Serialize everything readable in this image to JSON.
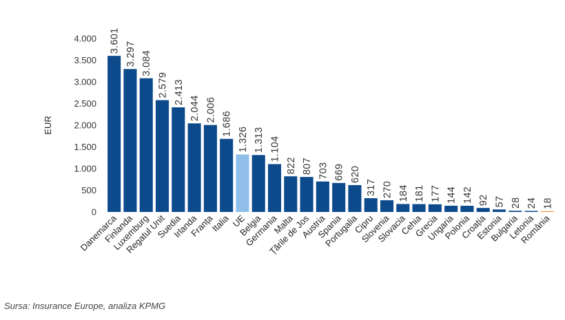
{
  "chart_data": {
    "type": "bar",
    "ylabel": "EUR",
    "ylim": [
      0,
      4000
    ],
    "yticks": [
      0,
      500,
      1000,
      1500,
      2000,
      2500,
      3000,
      3500,
      4000
    ],
    "ytick_labels": [
      "0",
      "500",
      "1.000",
      "1.500",
      "2.000",
      "2.500",
      "3.000",
      "3.500",
      "4.000"
    ],
    "grid": false,
    "categories": [
      "Danemarca",
      "Finlanda",
      "Luxemburg",
      "Regatul Unit",
      "Suedia",
      "Irlanda",
      "Franța",
      "Italia",
      "UE",
      "Belgia",
      "Germania",
      "Malta",
      "Țările de Jos",
      "Austria",
      "Spania",
      "Portugalia",
      "Cipru",
      "Slovenia",
      "Slovacia",
      "Cehia",
      "Grecia",
      "Ungaria",
      "Polonia",
      "Croația",
      "Estonia",
      "Bulgaria",
      "Letonia",
      "România"
    ],
    "values": [
      3601,
      3297,
      3084,
      2579,
      2413,
      2044,
      2006,
      1686,
      1326,
      1313,
      1104,
      822,
      807,
      703,
      669,
      620,
      317,
      270,
      184,
      181,
      177,
      144,
      142,
      92,
      57,
      28,
      24,
      18
    ],
    "value_labels": [
      "3.601",
      "3.297",
      "3.084",
      "2.579",
      "2.413",
      "2.044",
      "2.006",
      "1.686",
      "1.326",
      "1.313",
      "1.104",
      "822",
      "807",
      "703",
      "669",
      "620",
      "317",
      "270",
      "184",
      "181",
      "177",
      "144",
      "142",
      "92",
      "57",
      "28",
      "24",
      "18"
    ],
    "colors": {
      "default": "#0d4a8c",
      "highlight_eu": "#8fbfe8",
      "highlight_romania": "#f0913a"
    },
    "highlight": {
      "UE": "highlight_eu",
      "România": "highlight_romania"
    }
  },
  "source": "Sursa: Insurance Europe, analiza KPMG"
}
